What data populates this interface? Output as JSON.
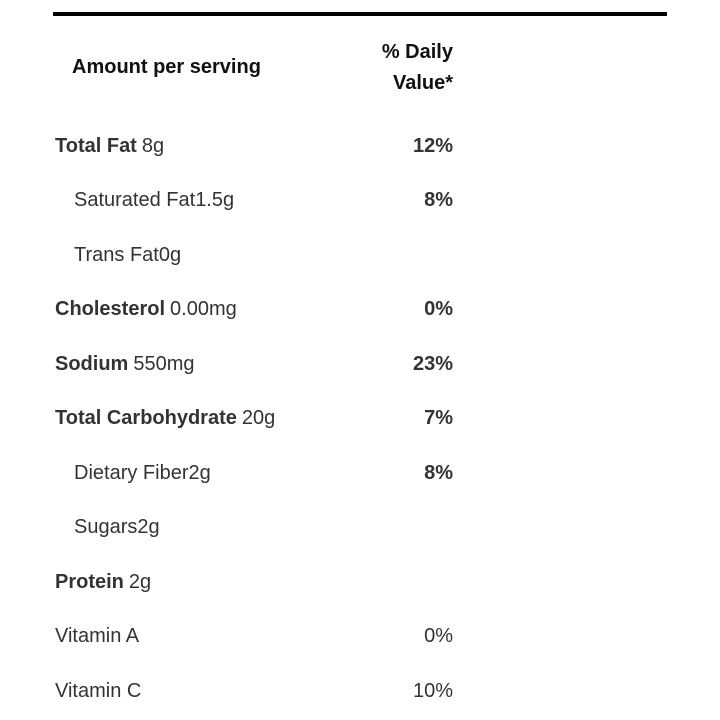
{
  "header": {
    "amount_label": "Amount per serving",
    "dv_label": "% Daily Value*"
  },
  "rows": [
    {
      "name": "Total Fat",
      "amount": "8g",
      "dv": "12%",
      "style": "bold"
    },
    {
      "name": "Saturated Fat",
      "amount": "1.5g",
      "dv": "8%",
      "style": "sub"
    },
    {
      "name": "Trans Fat",
      "amount": "0g",
      "dv": null,
      "style": "sub"
    },
    {
      "name": "Cholesterol",
      "amount": "0.00mg",
      "dv": "0%",
      "style": "bold"
    },
    {
      "name": "Sodium",
      "amount": "550mg",
      "dv": "23%",
      "style": "bold"
    },
    {
      "name": "Total Carbohydrate",
      "amount": "20g",
      "dv": "7%",
      "style": "bold"
    },
    {
      "name": "Dietary Fiber",
      "amount": "2g",
      "dv": "8%",
      "style": "sub"
    },
    {
      "name": "Sugars",
      "amount": "2g",
      "dv": null,
      "style": "sub"
    },
    {
      "name": "Protein",
      "amount": "2g",
      "dv": null,
      "style": "bold"
    },
    {
      "name": "Vitamin A",
      "amount": null,
      "dv": "0%",
      "style": "plain"
    },
    {
      "name": "Vitamin C",
      "amount": null,
      "dv": "10%",
      "style": "plain"
    }
  ]
}
